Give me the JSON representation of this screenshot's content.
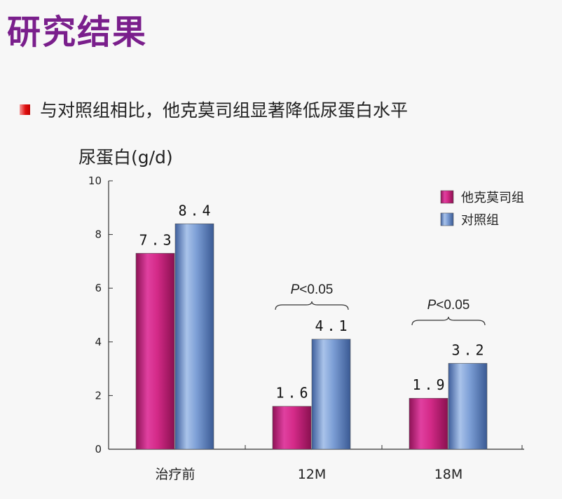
{
  "slide": {
    "title": "研究结果",
    "bullet": "与对照组相比，他克莫司组显著降低尿蛋白水平"
  },
  "colors": {
    "title": "#7a1f8c",
    "series_tacrolimus": "#c8227a",
    "series_control": "#5f86c4",
    "bullet": "#e01010"
  },
  "chart_data": {
    "type": "bar",
    "ylabel": "尿蛋白(g/d)",
    "ylim": [
      0,
      10
    ],
    "yticks": [
      0,
      2,
      4,
      6,
      8,
      10
    ],
    "categories": [
      "治疗前",
      "12M",
      "18M"
    ],
    "series": [
      {
        "name": "他克莫司组",
        "values": [
          7.3,
          1.6,
          1.9
        ],
        "labels": [
          "7.3",
          "1.6",
          "1.9"
        ]
      },
      {
        "name": "对照组",
        "values": [
          8.4,
          4.1,
          3.2
        ],
        "labels": [
          "8.4",
          "4.1",
          "3.2"
        ]
      }
    ],
    "annotations": [
      {
        "category": "12M",
        "text_p": "P",
        "text_rest": "<0.05"
      },
      {
        "category": "18M",
        "text_p": "P",
        "text_rest": "<0.05"
      }
    ],
    "legend": "top-right",
    "grid": false
  }
}
